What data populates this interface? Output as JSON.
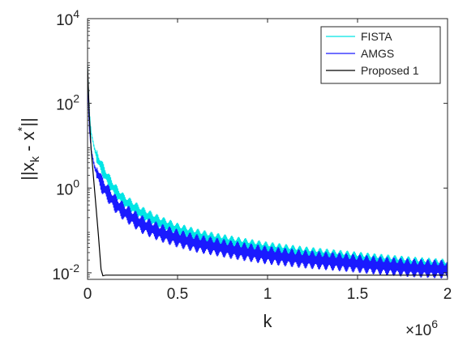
{
  "chart_data": {
    "type": "line",
    "xlabel": "k",
    "ylabel_parts": {
      "base": "||x",
      "sub": "k",
      "mid": " - x",
      "sup": "*",
      "end": "||"
    },
    "x_exponent": {
      "base": "×10",
      "sup": "6"
    },
    "xlim": [
      0,
      2
    ],
    "ylim": [
      0.007,
      10000
    ],
    "yscale": "log",
    "xticks": [
      {
        "value": 0,
        "label": "0"
      },
      {
        "value": 0.5,
        "label": "0.5"
      },
      {
        "value": 1,
        "label": "1"
      },
      {
        "value": 1.5,
        "label": "1.5"
      },
      {
        "value": 2,
        "label": "2"
      }
    ],
    "yticks": [
      {
        "value": 0.01,
        "base": "10",
        "exp": "-2"
      },
      {
        "value": 1,
        "base": "10",
        "exp": "0"
      },
      {
        "value": 100,
        "base": "10",
        "exp": "2"
      },
      {
        "value": 10000,
        "base": "10",
        "exp": "4"
      }
    ],
    "legend_position": "top-right",
    "series": [
      {
        "name": "FISTA",
        "color": "#00e5e5",
        "x": [
          0,
          0.01,
          0.02,
          0.04,
          0.06,
          0.08,
          0.1,
          0.15,
          0.2,
          0.3,
          0.4,
          0.5,
          0.6,
          0.7,
          0.8,
          0.9,
          1.0,
          1.2,
          1.4,
          1.6,
          1.8,
          2.0
        ],
        "y": [
          800,
          60,
          20,
          8,
          4.5,
          3,
          2,
          0.9,
          0.5,
          0.25,
          0.15,
          0.1,
          0.075,
          0.06,
          0.05,
          0.042,
          0.036,
          0.028,
          0.023,
          0.019,
          0.016,
          0.014
        ],
        "oscillating": true
      },
      {
        "name": "AMGS",
        "color": "#1a1aff",
        "x": [
          0,
          0.01,
          0.02,
          0.04,
          0.06,
          0.08,
          0.1,
          0.15,
          0.2,
          0.3,
          0.4,
          0.5,
          0.6,
          0.7,
          0.8,
          0.9,
          1.0,
          1.2,
          1.4,
          1.6,
          1.8,
          2.0
        ],
        "y": [
          300,
          25,
          8,
          3,
          2,
          1.2,
          0.9,
          0.45,
          0.28,
          0.14,
          0.09,
          0.065,
          0.05,
          0.042,
          0.035,
          0.03,
          0.026,
          0.021,
          0.018,
          0.015,
          0.013,
          0.012
        ],
        "oscillating": true
      },
      {
        "name": "Proposed 1",
        "color": "#000000",
        "x": [
          0,
          0.005,
          0.01,
          0.02,
          0.04,
          0.06,
          0.075,
          0.085,
          0.1,
          0.15,
          0.5,
          1.0,
          1.5,
          2.0
        ],
        "y": [
          800,
          200,
          50,
          8,
          0.8,
          0.08,
          0.012,
          0.0085,
          0.0088,
          0.0088,
          0.0088,
          0.0088,
          0.0088,
          0.0088
        ],
        "oscillating": false
      }
    ]
  }
}
